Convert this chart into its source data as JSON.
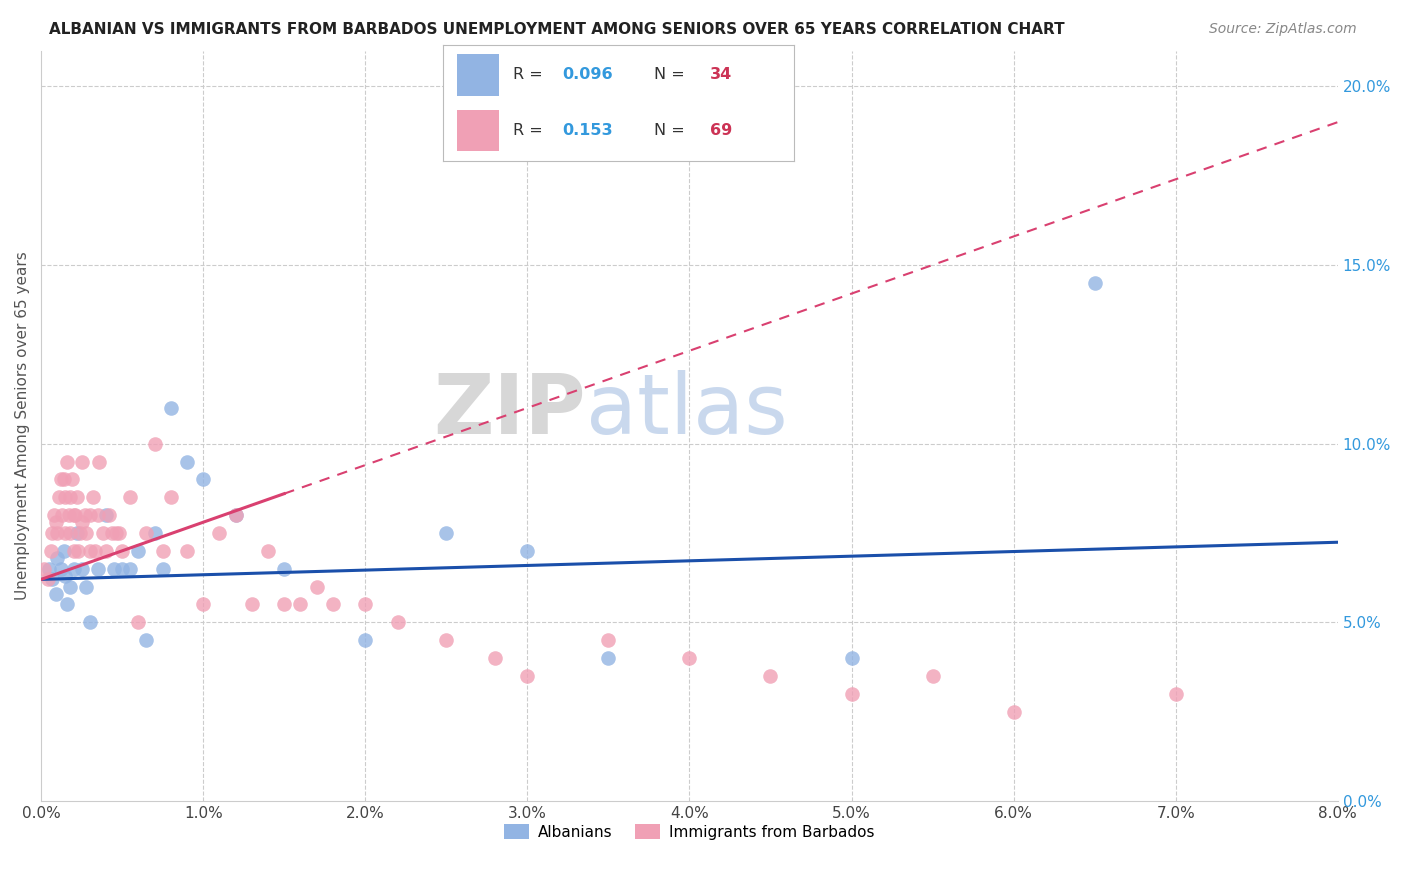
{
  "title": "ALBANIAN VS IMMIGRANTS FROM BARBADOS UNEMPLOYMENT AMONG SENIORS OVER 65 YEARS CORRELATION CHART",
  "source": "Source: ZipAtlas.com",
  "ylabel": "Unemployment Among Seniors over 65 years",
  "color_albanian": "#92b4e3",
  "color_barbados": "#f0a0b5",
  "color_albanian_line": "#1a4faa",
  "color_barbados_line": "#d94070",
  "background_color": "#ffffff",
  "watermark_zip": "ZIP",
  "watermark_atlas": "atlas",
  "alb_r": "0.096",
  "alb_n": "34",
  "bar_r": "0.153",
  "bar_n": "69",
  "albanian_x": [
    0.05,
    0.07,
    0.09,
    0.1,
    0.12,
    0.14,
    0.15,
    0.16,
    0.18,
    0.2,
    0.22,
    0.25,
    0.28,
    0.3,
    0.35,
    0.4,
    0.45,
    0.5,
    0.55,
    0.6,
    0.65,
    0.7,
    0.75,
    0.8,
    0.9,
    1.0,
    1.2,
    1.5,
    2.0,
    2.5,
    3.0,
    3.5,
    5.0,
    6.5
  ],
  "albanian_y": [
    6.5,
    6.2,
    5.8,
    6.8,
    6.5,
    7.0,
    6.3,
    5.5,
    6.0,
    6.5,
    7.5,
    6.5,
    6.0,
    5.0,
    6.5,
    8.0,
    6.5,
    6.5,
    6.5,
    7.0,
    4.5,
    7.5,
    6.5,
    11.0,
    9.5,
    9.0,
    8.0,
    6.5,
    4.5,
    7.5,
    7.0,
    4.0,
    4.0,
    14.5
  ],
  "barbados_x": [
    0.02,
    0.04,
    0.06,
    0.07,
    0.08,
    0.09,
    0.1,
    0.11,
    0.12,
    0.13,
    0.14,
    0.15,
    0.15,
    0.16,
    0.17,
    0.18,
    0.18,
    0.19,
    0.2,
    0.2,
    0.21,
    0.22,
    0.23,
    0.24,
    0.25,
    0.25,
    0.27,
    0.28,
    0.3,
    0.3,
    0.32,
    0.33,
    0.35,
    0.36,
    0.38,
    0.4,
    0.42,
    0.44,
    0.46,
    0.48,
    0.5,
    0.55,
    0.6,
    0.65,
    0.7,
    0.75,
    0.8,
    0.9,
    1.0,
    1.1,
    1.2,
    1.3,
    1.4,
    1.5,
    1.6,
    1.7,
    1.8,
    2.0,
    2.2,
    2.5,
    2.8,
    3.0,
    3.5,
    4.0,
    4.5,
    5.0,
    5.5,
    6.0,
    7.0
  ],
  "barbados_y": [
    6.5,
    6.2,
    7.0,
    7.5,
    8.0,
    7.8,
    7.5,
    8.5,
    9.0,
    8.0,
    9.0,
    7.5,
    8.5,
    9.5,
    8.0,
    7.5,
    8.5,
    9.0,
    7.0,
    8.0,
    8.0,
    8.5,
    7.0,
    7.5,
    7.8,
    9.5,
    8.0,
    7.5,
    7.0,
    8.0,
    8.5,
    7.0,
    8.0,
    9.5,
    7.5,
    7.0,
    8.0,
    7.5,
    7.5,
    7.5,
    7.0,
    8.5,
    5.0,
    7.5,
    10.0,
    7.0,
    8.5,
    7.0,
    5.5,
    7.5,
    8.0,
    5.5,
    7.0,
    5.5,
    5.5,
    6.0,
    5.5,
    5.5,
    5.0,
    4.5,
    4.0,
    3.5,
    4.5,
    4.0,
    3.5,
    3.0,
    3.5,
    2.5,
    3.0
  ],
  "xlim": [
    0.0,
    0.08
  ],
  "ylim": [
    0.0,
    0.21
  ],
  "xtick_pct": [
    "0.0%",
    "1.0%",
    "2.0%",
    "3.0%",
    "4.0%",
    "5.0%",
    "6.0%",
    "7.0%",
    "8.0%"
  ],
  "ytick_pct": [
    "0.0%",
    "5.0%",
    "10.0%",
    "15.0%",
    "20.0%"
  ],
  "ytick_vals": [
    0.0,
    0.05,
    0.1,
    0.15,
    0.2
  ],
  "xtick_vals": [
    0.0,
    0.01,
    0.02,
    0.03,
    0.04,
    0.05,
    0.06,
    0.07,
    0.08
  ]
}
